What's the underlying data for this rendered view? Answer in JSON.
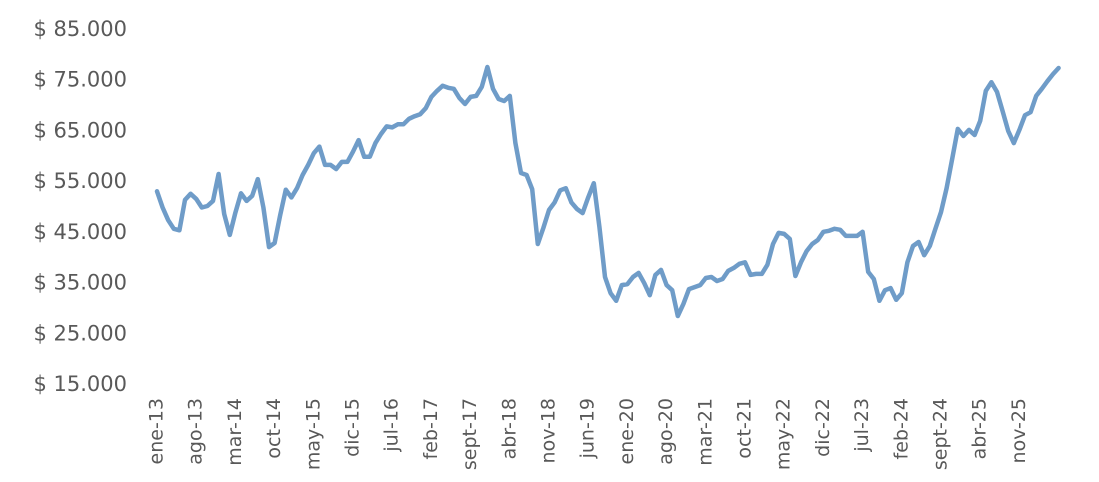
{
  "chart_data": {
    "type": "line",
    "categories": [
      "ene-13",
      null,
      null,
      null,
      null,
      null,
      null,
      "ago-13",
      null,
      null,
      null,
      null,
      null,
      null,
      "mar-14",
      null,
      null,
      null,
      null,
      null,
      null,
      "oct-14",
      null,
      null,
      null,
      null,
      null,
      null,
      "may-15",
      null,
      null,
      null,
      null,
      null,
      null,
      "dic-15",
      null,
      null,
      null,
      null,
      null,
      null,
      "jul-16",
      null,
      null,
      null,
      null,
      null,
      null,
      "feb-17",
      null,
      null,
      null,
      null,
      null,
      null,
      "sept-17",
      null,
      null,
      null,
      null,
      null,
      null,
      "abr-18",
      null,
      null,
      null,
      null,
      null,
      null,
      "nov-18",
      null,
      null,
      null,
      null,
      null,
      null,
      "jun-19",
      null,
      null,
      null,
      null,
      null,
      null,
      "ene-20",
      null,
      null,
      null,
      null,
      null,
      null,
      "ago-20",
      null,
      null,
      null,
      null,
      null,
      null,
      "mar-21",
      null,
      null,
      null,
      null,
      null,
      null,
      "oct-21",
      null,
      null,
      null,
      null,
      null,
      null,
      "may-22",
      null,
      null,
      null,
      null,
      null,
      null,
      "dic-22",
      null,
      null,
      null,
      null,
      null,
      null,
      "jul-23",
      null,
      null,
      null,
      null,
      null,
      null,
      "feb-24",
      null,
      null,
      null,
      null,
      null,
      null,
      "sept-24",
      null,
      null,
      null,
      null,
      null,
      null,
      "abr-25",
      null,
      null,
      null,
      null,
      null,
      null,
      "nov-25",
      null,
      null,
      null,
      null,
      null,
      null,
      null
    ],
    "values": [
      53200,
      50000,
      47500,
      45800,
      45500,
      51500,
      52700,
      51700,
      50000,
      50300,
      51300,
      56600,
      48700,
      44600,
      49000,
      52800,
      51300,
      52300,
      55600,
      50000,
      42200,
      43000,
      48500,
      53500,
      52000,
      53800,
      56400,
      58400,
      60700,
      62000,
      58400,
      58400,
      57600,
      59000,
      59000,
      61000,
      63300,
      60000,
      60000,
      62700,
      64500,
      66000,
      65800,
      66400,
      66400,
      67500,
      68000,
      68400,
      69600,
      71800,
      73000,
      74000,
      73600,
      73400,
      71600,
      70400,
      71800,
      72000,
      73800,
      77700,
      73400,
      71400,
      71000,
      72000,
      62700,
      56800,
      56400,
      53600,
      42800,
      46000,
      49500,
      51000,
      53400,
      53800,
      51000,
      49700,
      48900,
      52000,
      54800,
      46200,
      36300,
      33100,
      31600,
      34700,
      34900,
      36300,
      37100,
      35100,
      32700,
      36700,
      37700,
      34700,
      33700,
      28600,
      31000,
      33900,
      34300,
      34700,
      36100,
      36300,
      35500,
      35900,
      37500,
      38100,
      38900,
      39200,
      36700,
      36900,
      36900,
      38700,
      42800,
      45000,
      44800,
      43800,
      36500,
      39200,
      41400,
      42800,
      43600,
      45200,
      45400,
      45800,
      45600,
      44400,
      44400,
      44400,
      45200,
      37300,
      35900,
      31600,
      33700,
      34100,
      31800,
      33100,
      39200,
      42400,
      43200,
      40600,
      42400,
      45800,
      49100,
      53800,
      59600,
      65500,
      64100,
      65300,
      64300,
      67100,
      73000,
      74700,
      72800,
      69000,
      65100,
      62700,
      65300,
      68200,
      68800,
      72000,
      73400,
      74900,
      76300,
      77500
    ],
    "color": "#6f9cc8",
    "ylim": [
      15000,
      85000
    ],
    "yticks": [
      {
        "value": 15000,
        "label": "$ 15.000"
      },
      {
        "value": 25000,
        "label": "$ 25.000"
      },
      {
        "value": 35000,
        "label": "$ 35.000"
      },
      {
        "value": 45000,
        "label": "$ 45.000"
      },
      {
        "value": 55000,
        "label": "$ 55.000"
      },
      {
        "value": 65000,
        "label": "$ 65.000"
      },
      {
        "value": 75000,
        "label": "$ 75.000"
      },
      {
        "value": 85000,
        "label": "$ 85.000"
      }
    ],
    "grid": false
  }
}
